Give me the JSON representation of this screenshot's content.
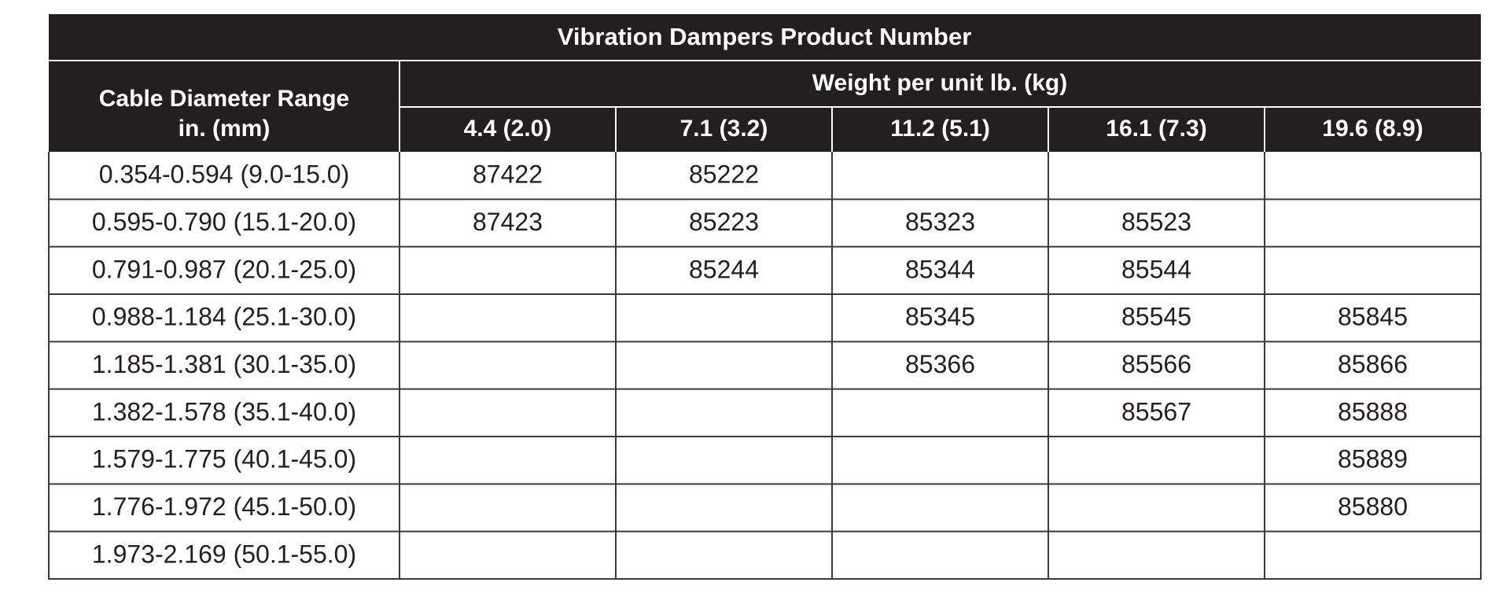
{
  "title": "Vibration Dampers Product Number",
  "row_header": [
    "Cable Diameter Range",
    "in. (mm)"
  ],
  "weight_header": "Weight per unit lb. (kg)",
  "weights": [
    "4.4 (2.0)",
    "7.1 (3.2)",
    "11.2 (5.1)",
    "16.1 (7.3)",
    "19.6 (8.9)"
  ],
  "rows": [
    {
      "range": "0.354-0.594 (9.0-15.0)",
      "products": [
        "87422",
        "85222",
        null,
        null,
        null
      ]
    },
    {
      "range": "0.595-0.790 (15.1-20.0)",
      "products": [
        "87423",
        "85223",
        "85323",
        "85523",
        null
      ]
    },
    {
      "range": "0.791-0.987 (20.1-25.0)",
      "products": [
        null,
        "85244",
        "85344",
        "85544",
        null
      ]
    },
    {
      "range": "0.988-1.184 (25.1-30.0)",
      "products": [
        null,
        null,
        "85345",
        "85545",
        "85845"
      ]
    },
    {
      "range": "1.185-1.381 (30.1-35.0)",
      "products": [
        null,
        null,
        "85366",
        "85566",
        "85866"
      ]
    },
    {
      "range": "1.382-1.578 (35.1-40.0)",
      "products": [
        null,
        null,
        null,
        "85567",
        "85888"
      ]
    },
    {
      "range": "1.579-1.775 (40.1-45.0)",
      "products": [
        null,
        null,
        null,
        null,
        "85889"
      ]
    },
    {
      "range": "1.776-1.972 (45.1-50.0)",
      "products": [
        null,
        null,
        null,
        null,
        "85880"
      ]
    },
    {
      "range": "1.973-2.169 (50.1-55.0)",
      "products": [
        null,
        null,
        null,
        null,
        null
      ]
    }
  ]
}
